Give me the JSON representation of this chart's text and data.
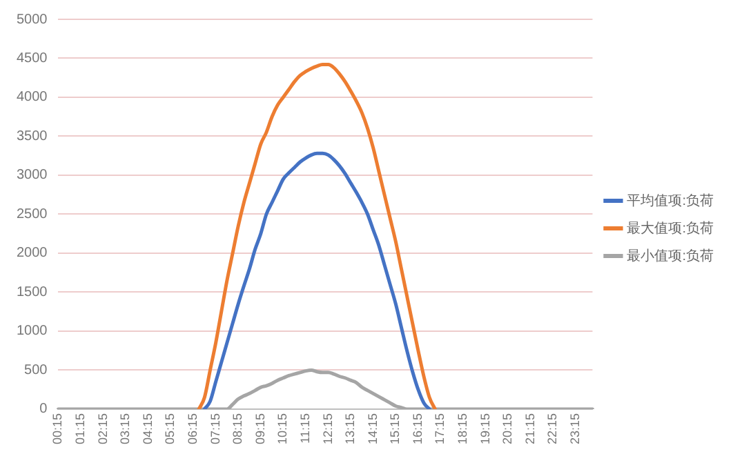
{
  "chart_data": {
    "type": "line",
    "categories": [
      "00:15",
      null,
      null,
      null,
      "01:15",
      null,
      null,
      null,
      "02:15",
      null,
      null,
      null,
      "03:15",
      null,
      null,
      null,
      "04:15",
      null,
      null,
      null,
      "05:15",
      null,
      null,
      null,
      "06:15",
      null,
      null,
      null,
      "07:15",
      null,
      null,
      null,
      "08:15",
      null,
      null,
      null,
      "09:15",
      null,
      null,
      null,
      "10:15",
      null,
      null,
      null,
      "11:15",
      null,
      null,
      null,
      "12:15",
      null,
      null,
      null,
      "13:15",
      null,
      null,
      null,
      "14:15",
      null,
      null,
      null,
      "15:15",
      null,
      null,
      null,
      "16:15",
      null,
      null,
      null,
      "17:15",
      null,
      null,
      null,
      "18:15",
      null,
      null,
      null,
      "19:15",
      null,
      null,
      null,
      "20:15",
      null,
      null,
      null,
      "21:15",
      null,
      null,
      null,
      "22:15",
      null,
      null,
      null,
      "23:15",
      null,
      null,
      null
    ],
    "series": [
      {
        "name": "平均值项:负荷",
        "color": "#4472c4",
        "values": [
          null,
          null,
          null,
          null,
          null,
          null,
          null,
          null,
          null,
          null,
          null,
          null,
          null,
          null,
          null,
          null,
          null,
          null,
          null,
          null,
          null,
          null,
          null,
          null,
          null,
          null,
          0,
          100,
          350,
          600,
          850,
          1100,
          1350,
          1580,
          1800,
          2050,
          2250,
          2500,
          2650,
          2800,
          2950,
          3030,
          3100,
          3170,
          3220,
          3260,
          3280,
          3280,
          3260,
          3200,
          3120,
          3020,
          2900,
          2780,
          2650,
          2500,
          2300,
          2100,
          1850,
          1600,
          1350,
          1050,
          750,
          480,
          250,
          80,
          0,
          null,
          null,
          null,
          null,
          null,
          null,
          null,
          null,
          null,
          null,
          null,
          null,
          null,
          null,
          null,
          null,
          null,
          null,
          null,
          null,
          null,
          null,
          null,
          null,
          null,
          null,
          null,
          null,
          null
        ]
      },
      {
        "name": "最大值项:负荷",
        "color": "#ed7d31",
        "values": [
          null,
          null,
          null,
          null,
          null,
          null,
          null,
          null,
          null,
          null,
          null,
          null,
          null,
          null,
          null,
          null,
          null,
          null,
          null,
          null,
          null,
          null,
          null,
          null,
          null,
          0,
          150,
          500,
          850,
          1250,
          1650,
          2000,
          2350,
          2650,
          2900,
          3150,
          3400,
          3550,
          3750,
          3900,
          4000,
          4100,
          4200,
          4280,
          4330,
          4370,
          4400,
          4420,
          4420,
          4380,
          4300,
          4200,
          4080,
          3950,
          3800,
          3600,
          3350,
          3050,
          2750,
          2450,
          2150,
          1800,
          1450,
          1100,
          750,
          420,
          150,
          0,
          null,
          null,
          null,
          null,
          null,
          null,
          null,
          null,
          null,
          null,
          null,
          null,
          null,
          null,
          null,
          null,
          null,
          null,
          null,
          null,
          null,
          null,
          null,
          null,
          null,
          null,
          null,
          null
        ]
      },
      {
        "name": "最小值项:负荷",
        "color": "#a5a5a5",
        "values": [
          0,
          0,
          0,
          0,
          0,
          0,
          0,
          0,
          0,
          0,
          0,
          0,
          0,
          0,
          0,
          0,
          0,
          0,
          0,
          0,
          0,
          0,
          0,
          0,
          0,
          0,
          0,
          0,
          0,
          0,
          0,
          60,
          130,
          170,
          200,
          240,
          280,
          300,
          330,
          370,
          400,
          430,
          450,
          470,
          490,
          500,
          480,
          470,
          470,
          450,
          420,
          400,
          370,
          340,
          280,
          240,
          200,
          160,
          120,
          80,
          40,
          20,
          0,
          0,
          0,
          0,
          0,
          0,
          0,
          0,
          0,
          0,
          0,
          0,
          0,
          0,
          0,
          0,
          0,
          0,
          0,
          0,
          0,
          0,
          0,
          0,
          0,
          0,
          0,
          0,
          0,
          0,
          0,
          0,
          0,
          0
        ]
      }
    ],
    "ylim": [
      0,
      5000
    ],
    "yticks": [
      0,
      500,
      1000,
      1500,
      2000,
      2500,
      3000,
      3500,
      4000,
      4500,
      5000
    ],
    "grid": "y",
    "legend": "right",
    "marker": "none",
    "line_style": "solid"
  }
}
